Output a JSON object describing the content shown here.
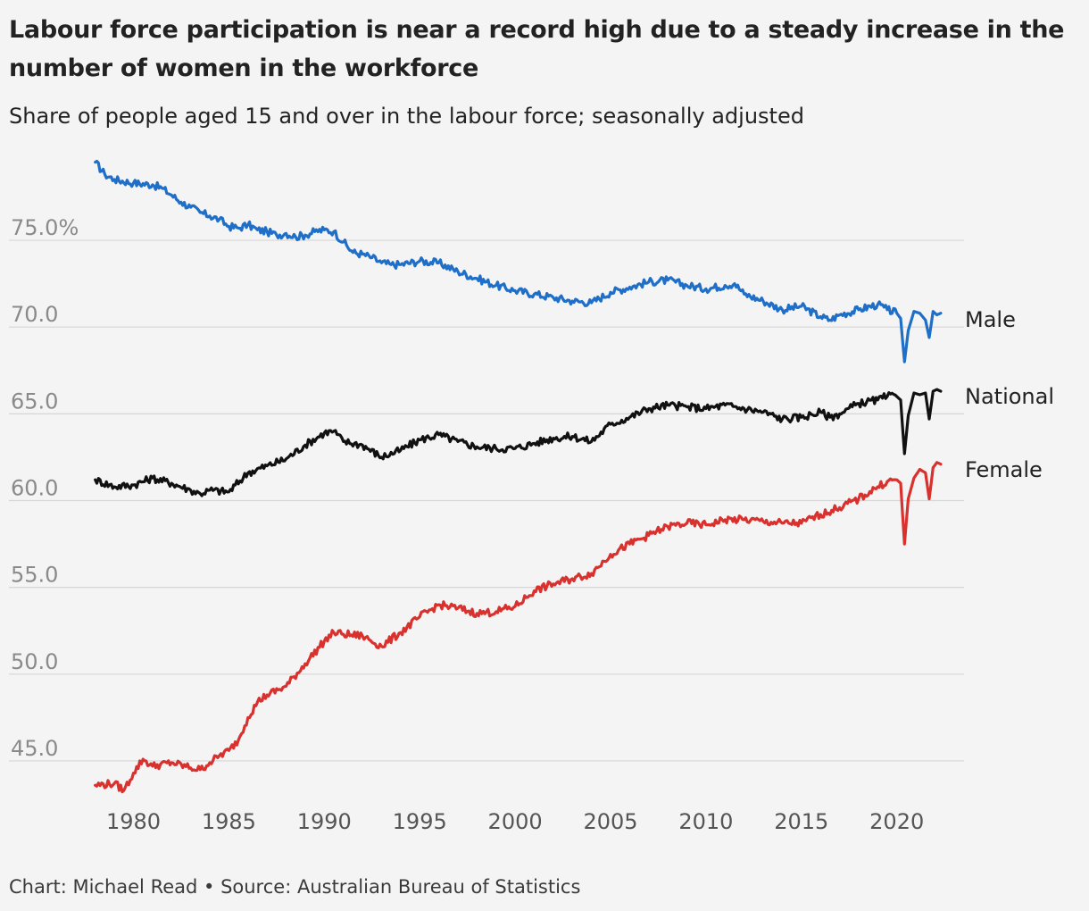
{
  "header": {
    "title": "Labour force participation is near a record high due to a steady increase in the number of women in the workforce",
    "subtitle": "Share of people aged 15 and over in the labour force; seasonally adjusted"
  },
  "footer": {
    "credit": "Chart: Michael Read • Source: Australian Bureau of Statistics"
  },
  "colors": {
    "background": "#f4f4f4",
    "grid": "#d6d6d6",
    "male": "#1f6fc8",
    "national": "#111111",
    "female": "#d9312e"
  },
  "chart_data": {
    "type": "line",
    "title": "Labour force participation is near a record high due to a steady increase in the number of women in the workforce",
    "subtitle": "Share of people aged 15 and over in the labour force; seasonally adjusted",
    "xlabel": "",
    "ylabel": "",
    "xlim": [
      1978,
      2022.5
    ],
    "ylim": [
      43.5,
      80.5
    ],
    "x_ticks": [
      "1980",
      "1985",
      "1990",
      "1995",
      "2000",
      "2005",
      "2010",
      "2015",
      "2020"
    ],
    "y_ticks": [
      "45.0",
      "50.0",
      "55.0",
      "60.0",
      "65.0",
      "70.0",
      "75.0%"
    ],
    "y_tick_values": [
      45,
      50,
      55,
      60,
      65,
      70,
      75
    ],
    "grid": true,
    "legend": "direct labels at line ends",
    "series": [
      {
        "name": "Male",
        "color": "#1f6fc8",
        "x": [
          1978.0,
          1978.5,
          1979.0,
          1980.0,
          1981.0,
          1981.5,
          1982.0,
          1982.5,
          1983.0,
          1983.5,
          1984.0,
          1984.5,
          1985.0,
          1985.5,
          1986.0,
          1986.5,
          1987.0,
          1987.5,
          1988.0,
          1988.5,
          1989.0,
          1989.5,
          1990.0,
          1990.5,
          1991.0,
          1991.5,
          1992.0,
          1992.5,
          1993.0,
          1993.5,
          1994.0,
          1995.0,
          1996.0,
          1997.0,
          1998.0,
          1999.0,
          2000.0,
          2001.0,
          2002.0,
          2003.0,
          2004.0,
          2005.0,
          2006.0,
          2007.0,
          2008.0,
          2009.0,
          2010.0,
          2011.0,
          2011.5,
          2012.0,
          2013.0,
          2014.0,
          2015.0,
          2016.0,
          2016.5,
          2017.0,
          2018.0,
          2019.0,
          2019.5,
          2020.0,
          2020.2,
          2020.4,
          2020.6,
          2020.9,
          2021.2,
          2021.5,
          2021.7,
          2021.9,
          2022.1,
          2022.3
        ],
        "values": [
          79.5,
          78.8,
          78.5,
          78.3,
          78.2,
          78.0,
          77.6,
          77.2,
          76.9,
          76.6,
          76.4,
          76.2,
          75.8,
          75.7,
          75.9,
          75.6,
          75.5,
          75.3,
          75.4,
          75.2,
          75.3,
          75.5,
          75.6,
          75.5,
          74.9,
          74.3,
          74.2,
          74.0,
          73.7,
          73.6,
          73.6,
          73.8,
          73.7,
          73.2,
          72.8,
          72.4,
          72.1,
          71.9,
          71.7,
          71.5,
          71.4,
          72.0,
          72.3,
          72.6,
          72.7,
          72.4,
          72.2,
          72.4,
          72.5,
          71.9,
          71.5,
          71.0,
          71.2,
          70.6,
          70.4,
          70.7,
          71.0,
          71.3,
          71.0,
          70.8,
          70.5,
          68.0,
          69.8,
          70.9,
          70.8,
          70.4,
          69.4,
          70.9,
          70.7,
          70.8
        ]
      },
      {
        "name": "National",
        "color": "#111111",
        "x": [
          1978.0,
          1979.0,
          1980.0,
          1981.0,
          1982.0,
          1983.0,
          1983.5,
          1984.0,
          1985.0,
          1986.0,
          1987.0,
          1988.0,
          1989.0,
          1990.0,
          1990.5,
          1991.0,
          1992.0,
          1993.0,
          1994.0,
          1995.0,
          1996.0,
          1997.0,
          1998.0,
          1999.0,
          2000.0,
          2001.0,
          2002.0,
          2003.0,
          2004.0,
          2005.0,
          2006.0,
          2007.0,
          2008.0,
          2009.0,
          2010.0,
          2011.0,
          2012.0,
          2013.0,
          2014.0,
          2015.0,
          2016.0,
          2016.5,
          2017.0,
          2018.0,
          2019.0,
          2019.5,
          2020.0,
          2020.2,
          2020.4,
          2020.6,
          2020.9,
          2021.2,
          2021.5,
          2021.7,
          2021.9,
          2022.1,
          2022.3
        ],
        "values": [
          61.2,
          60.8,
          60.9,
          61.3,
          61.0,
          60.6,
          60.4,
          60.6,
          60.5,
          61.6,
          62.0,
          62.4,
          63.2,
          63.9,
          64.0,
          63.4,
          63.2,
          62.5,
          62.9,
          63.5,
          63.8,
          63.4,
          63.1,
          63.0,
          63.0,
          63.3,
          63.6,
          63.7,
          63.4,
          64.4,
          64.8,
          65.3,
          65.5,
          65.4,
          65.3,
          65.5,
          65.3,
          65.1,
          64.7,
          64.8,
          65.1,
          64.8,
          65.0,
          65.6,
          65.8,
          66.0,
          66.0,
          65.8,
          62.7,
          64.9,
          66.2,
          66.1,
          66.2,
          64.7,
          66.3,
          66.4,
          66.3
        ]
      },
      {
        "name": "Female",
        "color": "#d9312e",
        "x": [
          1978.0,
          1979.0,
          1979.5,
          1980.0,
          1980.5,
          1981.0,
          1982.0,
          1983.0,
          1983.5,
          1984.0,
          1984.5,
          1985.0,
          1985.5,
          1986.0,
          1986.5,
          1987.0,
          1988.0,
          1989.0,
          1990.0,
          1990.5,
          1991.0,
          1992.0,
          1993.0,
          1994.0,
          1995.0,
          1996.0,
          1997.0,
          1998.0,
          1999.0,
          2000.0,
          2001.0,
          2002.0,
          2003.0,
          2004.0,
          2005.0,
          2006.0,
          2007.0,
          2008.0,
          2009.0,
          2010.0,
          2011.0,
          2012.0,
          2013.0,
          2014.0,
          2015.0,
          2016.0,
          2017.0,
          2018.0,
          2019.0,
          2019.5,
          2020.0,
          2020.2,
          2020.4,
          2020.6,
          2020.9,
          2021.2,
          2021.5,
          2021.7,
          2021.9,
          2022.1,
          2022.3
        ],
        "values": [
          43.6,
          43.7,
          43.3,
          44.3,
          45.1,
          44.7,
          44.9,
          44.6,
          44.5,
          44.9,
          45.3,
          45.6,
          46.2,
          47.5,
          48.4,
          48.8,
          49.3,
          50.6,
          51.9,
          52.4,
          52.3,
          52.2,
          51.6,
          52.4,
          53.3,
          54.0,
          53.8,
          53.5,
          53.6,
          53.9,
          54.8,
          55.2,
          55.5,
          55.8,
          56.9,
          57.5,
          58.0,
          58.5,
          58.7,
          58.6,
          58.9,
          58.9,
          58.8,
          58.7,
          58.7,
          59.2,
          59.6,
          60.1,
          60.8,
          61.1,
          61.2,
          61.0,
          57.5,
          60.1,
          61.3,
          61.8,
          61.6,
          60.1,
          61.9,
          62.2,
          62.1
        ]
      }
    ]
  }
}
